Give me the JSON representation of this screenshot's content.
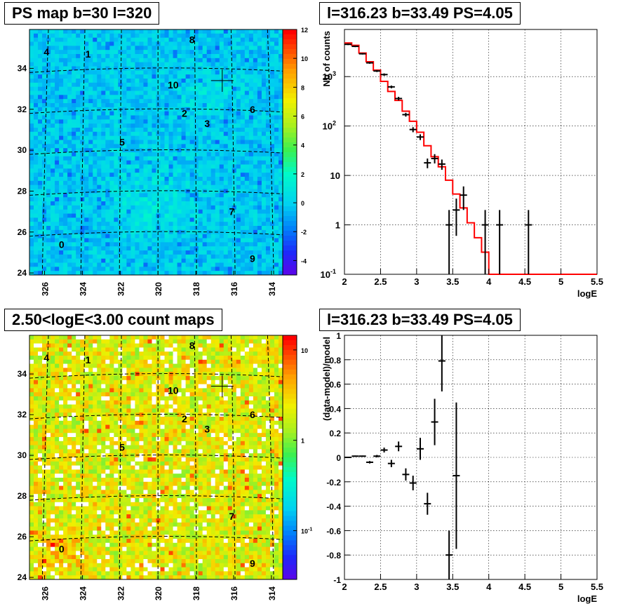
{
  "chart_data": [
    {
      "type": "heatmap",
      "title": "PS map b=30 l=320",
      "x_ticks": [
        "326",
        "324",
        "322",
        "320",
        "318",
        "316",
        "314"
      ],
      "y_ticks": [
        "24",
        "26",
        "28",
        "30",
        "32",
        "34"
      ],
      "colorbar_ticks": [
        "-4",
        "-2",
        "0",
        "2",
        "4",
        "6",
        "8",
        "10",
        "12"
      ],
      "zlim": [
        -5,
        12
      ],
      "sources": [
        {
          "label": "0",
          "l": 325.1,
          "b": 25.4
        },
        {
          "label": "1",
          "l": 323.7,
          "b": 34.7
        },
        {
          "label": "2",
          "l": 318.6,
          "b": 31.8
        },
        {
          "label": "3",
          "l": 317.4,
          "b": 31.3
        },
        {
          "label": "4",
          "l": 325.9,
          "b": 34.8
        },
        {
          "label": "5",
          "l": 321.9,
          "b": 30.4
        },
        {
          "label": "6",
          "l": 315.0,
          "b": 32.0
        },
        {
          "label": "7",
          "l": 316.1,
          "b": 27.0
        },
        {
          "label": "8",
          "l": 318.2,
          "b": 35.4
        },
        {
          "label": "9",
          "l": 315.0,
          "b": 24.7
        },
        {
          "label": "10",
          "l": 319.2,
          "b": 33.2
        }
      ],
      "marker": {
        "l": 316.6,
        "b": 33.4
      }
    },
    {
      "type": "line",
      "title": "l=316.23 b=33.49 PS=4.05",
      "xlabel": "logE",
      "ylabel": "Nb of counts",
      "yscale": "log",
      "xlim": [
        2,
        5.5
      ],
      "ylim": [
        0.1,
        9000
      ],
      "x_ticks": [
        "2",
        "2.5",
        "3",
        "3.5",
        "4",
        "4.5",
        "5",
        "5.5"
      ],
      "y_ticks": [
        {
          "v": 0.1,
          "t": "10"
        },
        {
          "v": 1,
          "t": "1"
        },
        {
          "v": 10,
          "t": "10"
        },
        {
          "v": 100,
          "t": "10"
        },
        {
          "v": 1000,
          "t": "10"
        }
      ],
      "y_tick_exp": [
        "-1",
        "",
        "",
        "2",
        "3"
      ],
      "series": [
        {
          "role": "model",
          "color": "#ff0000",
          "edges": [
            2.0,
            2.1,
            2.2,
            2.3,
            2.4,
            2.5,
            2.6,
            2.7,
            2.8,
            2.9,
            3.0,
            3.1,
            3.2,
            3.3,
            3.4,
            3.5,
            3.6,
            3.7,
            3.8,
            3.9,
            4.0,
            5.5
          ],
          "values": [
            4800,
            4300,
            3000,
            2000,
            1350,
            800,
            500,
            330,
            200,
            125,
            75,
            40,
            24,
            15,
            8,
            4.2,
            2.2,
            1.1,
            0.55,
            0.28,
            0.1
          ]
        },
        {
          "role": "data",
          "color": "#000000",
          "points": [
            {
              "x": 2.05,
              "y": 4500,
              "lo": 4350,
              "hi": 4650
            },
            {
              "x": 2.15,
              "y": 4100,
              "lo": 3950,
              "hi": 4250
            },
            {
              "x": 2.25,
              "y": 2900,
              "lo": 2800,
              "hi": 3000
            },
            {
              "x": 2.35,
              "y": 1900,
              "lo": 1820,
              "hi": 1980
            },
            {
              "x": 2.45,
              "y": 1300,
              "lo": 1240,
              "hi": 1360
            },
            {
              "x": 2.55,
              "y": 1100,
              "lo": 1040,
              "hi": 1160
            },
            {
              "x": 2.65,
              "y": 620,
              "lo": 580,
              "hi": 660
            },
            {
              "x": 2.75,
              "y": 360,
              "lo": 330,
              "hi": 390
            },
            {
              "x": 2.85,
              "y": 170,
              "lo": 155,
              "hi": 185
            },
            {
              "x": 2.95,
              "y": 85,
              "lo": 75,
              "hi": 95
            },
            {
              "x": 3.05,
              "y": 60,
              "lo": 52,
              "hi": 68
            },
            {
              "x": 3.15,
              "y": 18,
              "lo": 14,
              "hi": 22
            },
            {
              "x": 3.25,
              "y": 22,
              "lo": 17.5,
              "hi": 27
            },
            {
              "x": 3.35,
              "y": 17,
              "lo": 13,
              "hi": 21
            },
            {
              "x": 3.45,
              "y": 1,
              "lo": 0.1,
              "hi": 2
            },
            {
              "x": 3.55,
              "y": 2,
              "lo": 0.6,
              "hi": 3.4
            },
            {
              "x": 3.65,
              "y": 4,
              "lo": 2,
              "hi": 6
            },
            {
              "x": 3.95,
              "y": 1,
              "lo": 0.1,
              "hi": 2
            },
            {
              "x": 4.15,
              "y": 1,
              "lo": 0.1,
              "hi": 2
            },
            {
              "x": 4.55,
              "y": 1,
              "lo": 0.1,
              "hi": 2
            }
          ]
        }
      ],
      "grid": true
    },
    {
      "type": "heatmap",
      "title": "2.50<logE<3.00 count maps",
      "x_ticks": [
        "326",
        "324",
        "322",
        "320",
        "318",
        "316",
        "314"
      ],
      "y_ticks": [
        "24",
        "26",
        "28",
        "30",
        "32",
        "34"
      ],
      "colorbar_ticks": [
        {
          "v": 1.0,
          "t": "10"
        },
        {
          "v": 0.5,
          "t": "1"
        },
        {
          "v": 0.0,
          "t": "10"
        }
      ],
      "colorbar_exp": [
        "",
        "",
        "-1"
      ],
      "zscale": "log"
    },
    {
      "type": "scatter",
      "title": "l=316.23 b=33.49 PS=4.05",
      "xlabel": "logE",
      "ylabel": "(data-model)/model",
      "xlim": [
        2,
        5.5
      ],
      "ylim": [
        -1,
        1
      ],
      "x_ticks": [
        "2",
        "2.5",
        "3",
        "3.5",
        "4",
        "4.5",
        "5",
        "5.5"
      ],
      "y_ticks": [
        "-1",
        "-0.8",
        "-0.6",
        "-0.4",
        "-0.2",
        "0",
        "0.2",
        "0.4",
        "0.6",
        "0.8",
        "1"
      ],
      "points": [
        {
          "x": 2.05,
          "y": 0.0,
          "e": 0.005
        },
        {
          "x": 2.15,
          "y": 0.01,
          "e": 0.005
        },
        {
          "x": 2.25,
          "y": 0.01,
          "e": 0.005
        },
        {
          "x": 2.35,
          "y": -0.04,
          "e": 0.01
        },
        {
          "x": 2.45,
          "y": 0.01,
          "e": 0.01
        },
        {
          "x": 2.55,
          "y": 0.06,
          "e": 0.02
        },
        {
          "x": 2.65,
          "y": -0.05,
          "e": 0.03
        },
        {
          "x": 2.75,
          "y": 0.09,
          "e": 0.04
        },
        {
          "x": 2.85,
          "y": -0.14,
          "e": 0.05
        },
        {
          "x": 2.95,
          "y": -0.21,
          "e": 0.06
        },
        {
          "x": 3.05,
          "y": 0.07,
          "e": 0.09
        },
        {
          "x": 3.15,
          "y": -0.38,
          "e": 0.09
        },
        {
          "x": 3.25,
          "y": 0.29,
          "e": 0.19
        },
        {
          "x": 3.35,
          "y": 0.79,
          "e": 0.25
        },
        {
          "x": 3.45,
          "y": -0.8,
          "e": 0.2
        },
        {
          "x": 3.55,
          "y": -0.15,
          "e": 0.6
        }
      ],
      "grid": true
    }
  ]
}
